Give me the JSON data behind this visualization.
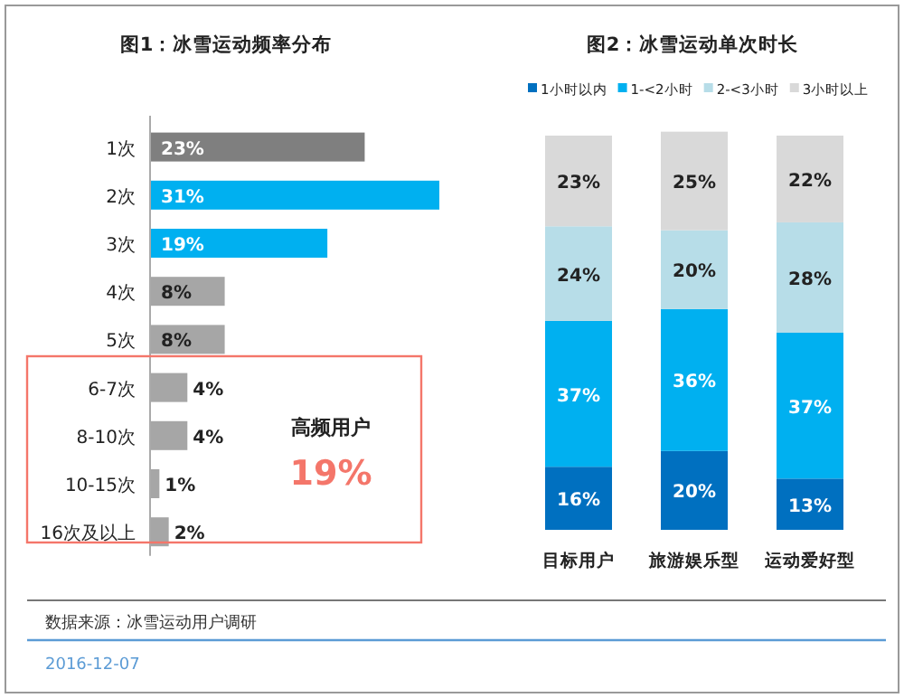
{
  "chart_data": [
    {
      "type": "bar",
      "orientation": "horizontal",
      "title": "图1：冰雪运动频率分布",
      "categories": [
        "1次",
        "2次",
        "3次",
        "4次",
        "5次",
        "6-7次",
        "8-10次",
        "10-15次",
        "16次及以上"
      ],
      "values": [
        23,
        31,
        19,
        8,
        8,
        4,
        4,
        1,
        2
      ],
      "colors": [
        "#7f7f7f",
        "#00b0f0",
        "#00b0f0",
        "#a6a6a6",
        "#a6a6a6",
        "#a6a6a6",
        "#a6a6a6",
        "#a6a6a6",
        "#a6a6a6"
      ],
      "value_labels": [
        "23%",
        "31%",
        "19%",
        "8%",
        "8%",
        "4%",
        "4%",
        "1%",
        "2%"
      ],
      "annotations": [
        "高频用户",
        "19%",
        "数据来源：冰雪运动用户调研",
        "2016-12-07"
      ]
    },
    {
      "type": "bar",
      "stacked": true,
      "title": "图2：冰雪运动单次时长",
      "categories": [
        "目标用户",
        "旅游娱乐型",
        "运动爱好型"
      ],
      "legend": "top",
      "series": [
        {
          "name": "1小时以内",
          "color": "#0070c0",
          "values": [
            16,
            20,
            13
          ],
          "value_labels": [
            "16%",
            "20%",
            "13%"
          ]
        },
        {
          "name": "1-<2小时",
          "color": "#00b0f0",
          "values": [
            37,
            36,
            37
          ],
          "value_labels": [
            "37%",
            "36%",
            "37%"
          ]
        },
        {
          "name": "2-<3小时",
          "color": "#b7dde8",
          "values": [
            24,
            20,
            28
          ],
          "value_labels": [
            "24%",
            "20%",
            "28%"
          ]
        },
        {
          "name": "3小时以上",
          "color": "#d9d9d9",
          "values": [
            23,
            25,
            22
          ],
          "value_labels": [
            "23%",
            "25%",
            "22%"
          ]
        }
      ]
    }
  ]
}
